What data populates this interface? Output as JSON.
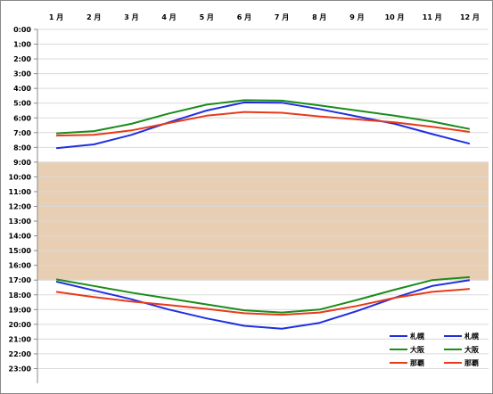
{
  "chart_data": {
    "type": "line",
    "title": "",
    "xlabel": "",
    "ylabel": "",
    "categories": [
      "1 月",
      "2 月",
      "3 月",
      "4 月",
      "5 月",
      "6 月",
      "7 月",
      "8 月",
      "9 月",
      "10 月",
      "11 月",
      "12 月"
    ],
    "y_ticks": [
      "0:00",
      "1:00",
      "2:00",
      "3:00",
      "4:00",
      "5:00",
      "6:00",
      "7:00",
      "8:00",
      "9:00",
      "10:00",
      "11:00",
      "12:00",
      "13:00",
      "14:00",
      "15:00",
      "16:00",
      "17:00",
      "18:00",
      "19:00",
      "20:00",
      "21:00",
      "22:00",
      "23:00"
    ],
    "ylim": [
      0,
      24
    ],
    "y_reversed": true,
    "grid": true,
    "legend_position": "bottom-right",
    "band": {
      "from": 9,
      "to": 17,
      "color": "#e8cfb4"
    },
    "series": [
      {
        "name": "札幌",
        "kind": "sunrise",
        "color": "#1f2fe0",
        "values": [
          8.05,
          7.8,
          7.15,
          6.3,
          5.5,
          4.95,
          4.97,
          5.4,
          5.9,
          6.4,
          7.1,
          7.75
        ]
      },
      {
        "name": "札幌",
        "kind": "sunset",
        "color": "#1f2fe0",
        "values": [
          17.1,
          17.7,
          18.3,
          19.0,
          19.6,
          20.1,
          20.3,
          19.9,
          19.1,
          18.2,
          17.4,
          17.0
        ]
      },
      {
        "name": "大阪",
        "kind": "sunrise",
        "color": "#1a8c1a",
        "values": [
          7.05,
          6.9,
          6.4,
          5.7,
          5.1,
          4.8,
          4.83,
          5.15,
          5.5,
          5.85,
          6.25,
          6.75
        ]
      },
      {
        "name": "大阪",
        "kind": "sunset",
        "color": "#1a8c1a",
        "values": [
          16.95,
          17.4,
          17.85,
          18.25,
          18.65,
          19.05,
          19.2,
          19.0,
          18.35,
          17.65,
          17.0,
          16.8
        ]
      },
      {
        "name": "那覇",
        "kind": "sunrise",
        "color": "#e83a1a",
        "values": [
          7.2,
          7.15,
          6.85,
          6.35,
          5.85,
          5.6,
          5.65,
          5.9,
          6.1,
          6.3,
          6.6,
          6.95
        ]
      },
      {
        "name": "那覇",
        "kind": "sunset",
        "color": "#e83a1a",
        "values": [
          17.8,
          18.15,
          18.45,
          18.7,
          18.95,
          19.25,
          19.35,
          19.2,
          18.75,
          18.2,
          17.8,
          17.6
        ]
      }
    ]
  }
}
